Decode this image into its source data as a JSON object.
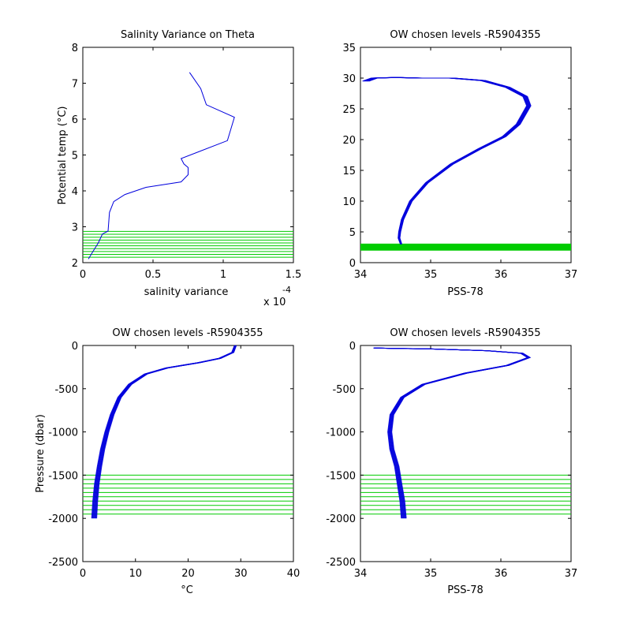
{
  "figure": {
    "background": "#ffffff",
    "colors": {
      "profile": "#0000dd",
      "levels": "#00cc00",
      "axis": "#000000"
    }
  },
  "chart_data": [
    {
      "type": "line",
      "title": "Salinity Variance on Theta",
      "xlabel": "salinity variance",
      "ylabel": "Potential temp (°C)",
      "xlim": [
        0,
        1.5
      ],
      "ylim": [
        2,
        8
      ],
      "x_ticks": [
        "0",
        "0.5",
        "1",
        "1.5"
      ],
      "y_ticks": [
        "2",
        "3",
        "4",
        "5",
        "6",
        "7",
        "8"
      ],
      "x_multiplier": {
        "base": "x 10",
        "exponent": "-4"
      },
      "series": [
        {
          "x": [
            0.04,
            0.07,
            0.11,
            0.14,
            0.18,
            0.19,
            0.22,
            0.3,
            0.45,
            0.7,
            0.75,
            0.75,
            0.72,
            0.7,
            1.03,
            1.08,
            0.88,
            0.84,
            0.76
          ],
          "y": [
            2.1,
            2.3,
            2.55,
            2.8,
            2.88,
            3.4,
            3.7,
            3.9,
            4.1,
            4.25,
            4.45,
            4.65,
            4.75,
            4.9,
            5.4,
            6.05,
            6.4,
            6.85,
            7.3
          ]
        }
      ],
      "levels": {
        "axis": "y",
        "values": [
          2.15,
          2.23,
          2.31,
          2.39,
          2.47,
          2.55,
          2.63,
          2.71,
          2.79,
          2.87
        ]
      }
    },
    {
      "type": "line",
      "title": "OW chosen levels -R5904355",
      "xlabel": "PSS-78",
      "ylabel": "",
      "xlim": [
        34,
        37
      ],
      "ylim": [
        0,
        35
      ],
      "x_ticks": [
        "34",
        "35",
        "36",
        "37"
      ],
      "y_ticks": [
        "0",
        "5",
        "10",
        "15",
        "20",
        "25",
        "30",
        "35"
      ],
      "series": [
        {
          "x": [
            34.58,
            34.55,
            34.56,
            34.6,
            34.72,
            34.95,
            35.3,
            35.7,
            36.05,
            36.25,
            36.4,
            36.35,
            36.1,
            35.75,
            35.3,
            34.85,
            34.5,
            34.2,
            34.08
          ],
          "y": [
            3.0,
            4.0,
            5.0,
            7.0,
            10.0,
            13.0,
            16.0,
            18.5,
            20.5,
            22.5,
            25.5,
            27.0,
            28.5,
            29.6,
            30.0,
            30.0,
            30.1,
            30.0,
            29.5
          ]
        }
      ],
      "levels": {
        "axis": "y",
        "values": [
          2.15,
          2.3,
          2.45,
          2.6,
          2.75,
          2.9
        ]
      }
    },
    {
      "type": "line",
      "title": "OW chosen levels -R5904355",
      "xlabel": "°C",
      "ylabel": "Pressure (dbar)",
      "xlim": [
        0,
        40
      ],
      "ylim": [
        -2500,
        0
      ],
      "x_ticks": [
        "0",
        "10",
        "20",
        "30",
        "40"
      ],
      "y_ticks": [
        "-2500",
        "-2000",
        "-1500",
        "-1000",
        "-500",
        "0"
      ],
      "series": [
        {
          "x": [
            2.2,
            2.4,
            2.7,
            3.2,
            3.8,
            4.6,
            5.6,
            7.0,
            9.0,
            12.0,
            16.0,
            22.0,
            26.0,
            28.5,
            29.0
          ],
          "y": [
            -2000,
            -1800,
            -1600,
            -1400,
            -1200,
            -1000,
            -800,
            -600,
            -450,
            -330,
            -260,
            -200,
            -150,
            -80,
            0
          ]
        }
      ],
      "levels": {
        "axis": "y",
        "values": [
          -1500,
          -1550,
          -1600,
          -1650,
          -1700,
          -1750,
          -1800,
          -1850,
          -1900,
          -1950
        ]
      }
    },
    {
      "type": "line",
      "title": "OW chosen levels -R5904355",
      "xlabel": "PSS-78",
      "ylabel": "",
      "xlim": [
        34,
        37
      ],
      "ylim": [
        -2500,
        0
      ],
      "x_ticks": [
        "34",
        "35",
        "36",
        "37"
      ],
      "y_ticks": [
        "-2500",
        "-2000",
        "-1500",
        "-1000",
        "-500",
        "0"
      ],
      "series": [
        {
          "x": [
            34.62,
            34.6,
            34.56,
            34.52,
            34.45,
            34.42,
            34.45,
            34.6,
            34.9,
            35.5,
            36.1,
            36.4,
            36.3,
            35.8,
            35.0,
            34.2
          ],
          "y": [
            -2000,
            -1800,
            -1600,
            -1400,
            -1200,
            -1000,
            -800,
            -600,
            -450,
            -320,
            -230,
            -140,
            -90,
            -60,
            -40,
            -30
          ]
        }
      ],
      "levels": {
        "axis": "y",
        "values": [
          -1500,
          -1550,
          -1600,
          -1650,
          -1700,
          -1750,
          -1800,
          -1850,
          -1900,
          -1950
        ]
      }
    }
  ]
}
